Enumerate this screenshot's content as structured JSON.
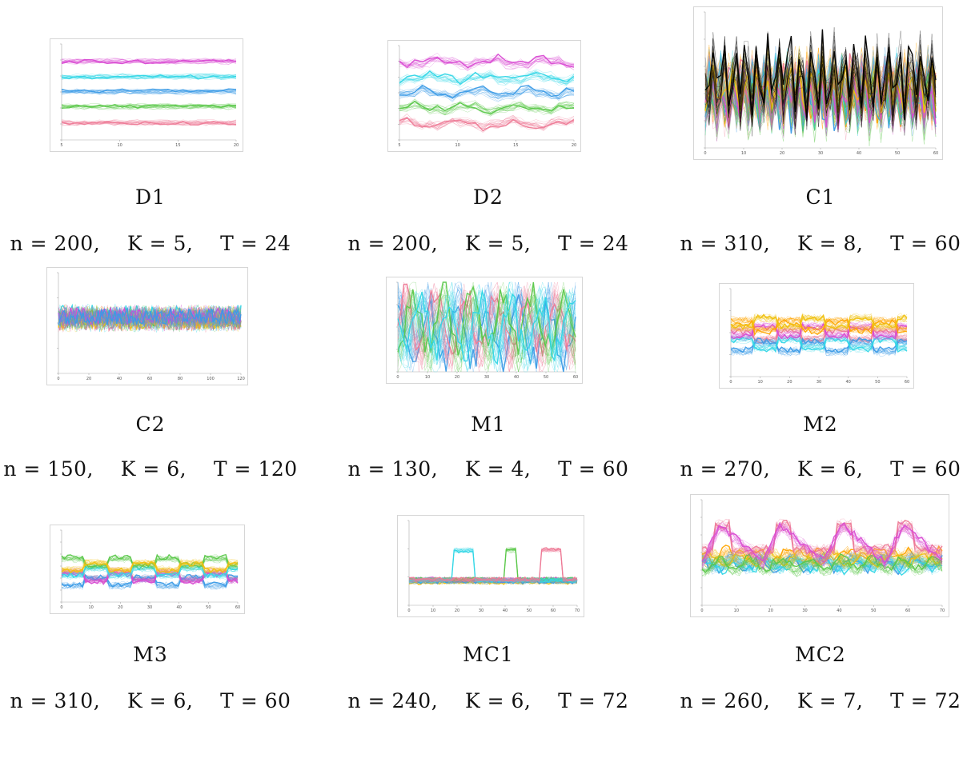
{
  "figure": {
    "panels": [
      {
        "id": "D1",
        "title": "D1",
        "params": {
          "n_label": "n = 200,",
          "k_label": "K = 5,",
          "t_label": "T = 24"
        },
        "chart_data": {
          "type": "line",
          "series_count": 5,
          "T": 24,
          "n": 200,
          "colors": [
            "#d94bd3",
            "#33d6e6",
            "#3b9be6",
            "#5ac84a",
            "#ee7b96"
          ],
          "levels": [
            0.18,
            0.34,
            0.5,
            0.65,
            0.82
          ],
          "noise": 0.03,
          "pattern": "flat",
          "xticks": [
            "5",
            "10",
            "15",
            "20"
          ],
          "yticks": [
            "",
            "",
            "",
            "",
            "",
            "",
            ""
          ]
        }
      },
      {
        "id": "D2",
        "title": "D2",
        "params": {
          "n_label": "n = 200,",
          "k_label": "K = 5,",
          "t_label": "T = 24"
        },
        "chart_data": {
          "type": "line",
          "series_count": 5,
          "T": 24,
          "n": 200,
          "colors": [
            "#d94bd3",
            "#33d6e6",
            "#3b9be6",
            "#5ac84a",
            "#ee7b96"
          ],
          "levels": [
            0.18,
            0.34,
            0.5,
            0.66,
            0.82
          ],
          "noise": 0.05,
          "pattern": "wavy",
          "xticks": [
            "5",
            "10",
            "15",
            "20"
          ],
          "yticks": [
            "",
            "",
            "",
            "",
            "",
            "",
            ""
          ]
        }
      },
      {
        "id": "C1",
        "title": "C1",
        "params": {
          "n_label": "n = 310,",
          "k_label": "K = 8,",
          "t_label": "T = 60"
        },
        "chart_data": {
          "type": "line",
          "series_count": 8,
          "T": 60,
          "n": 310,
          "colors": [
            "#000000",
            "#f0c010",
            "#d94bd3",
            "#5ac84a",
            "#33d6e6",
            "#3b9be6",
            "#ee7b96",
            "#ffa500"
          ],
          "levels": [
            0.5,
            0.55,
            0.62,
            0.65,
            0.6,
            0.58,
            0.6,
            0.55
          ],
          "noise": 0.18,
          "pattern": "spiky",
          "xticks": [
            "0",
            "10",
            "20",
            "30",
            "40",
            "50",
            "60"
          ],
          "yticks": [
            "",
            "",
            "",
            "",
            "",
            ""
          ]
        }
      },
      {
        "id": "C2",
        "title": "C2",
        "params": {
          "n_label": "n = 150,",
          "k_label": "K = 6,",
          "t_label": "T = 120"
        },
        "chart_data": {
          "type": "line",
          "series_count": 6,
          "T": 120,
          "n": 150,
          "colors": [
            "#3b9be6",
            "#d94bd3",
            "#f0c010",
            "#5ac84a",
            "#33d6e6",
            "#ee7b96"
          ],
          "levels": [
            0.45,
            0.45,
            0.45,
            0.45,
            0.45,
            0.45
          ],
          "noise": 0.12,
          "pattern": "noise",
          "xticks": [
            "0",
            "20",
            "40",
            "60",
            "80",
            "100",
            "120"
          ],
          "yticks": [
            "",
            "",
            "",
            "",
            ""
          ]
        }
      },
      {
        "id": "M1",
        "title": "M1",
        "params": {
          "n_label": "n = 130,",
          "k_label": "K = 4,",
          "t_label": "T = 60"
        },
        "chart_data": {
          "type": "line",
          "series_count": 4,
          "T": 60,
          "n": 130,
          "colors": [
            "#33d6e6",
            "#5ac84a",
            "#ee7b96",
            "#3b9be6"
          ],
          "levels": [
            0.5,
            0.5,
            0.5,
            0.5
          ],
          "noise": 0.25,
          "pattern": "oscillate",
          "xticks": [
            "0",
            "10",
            "20",
            "30",
            "40",
            "50",
            "60"
          ],
          "yticks": [
            "",
            "",
            "",
            "",
            ""
          ]
        }
      },
      {
        "id": "M2",
        "title": "M2",
        "params": {
          "n_label": "n = 270,",
          "k_label": "K = 6,",
          "t_label": "T = 60"
        },
        "chart_data": {
          "type": "line",
          "series_count": 6,
          "T": 60,
          "n": 270,
          "colors": [
            "#f0c010",
            "#ffa500",
            "#d94bd3",
            "#33d6e6",
            "#3b9be6",
            "#ee7b96"
          ],
          "levels": [
            0.38,
            0.42,
            0.48,
            0.62,
            0.66,
            0.52
          ],
          "noise": 0.05,
          "pattern": "steps",
          "xticks": [
            "0",
            "10",
            "20",
            "30",
            "40",
            "50",
            "60"
          ],
          "yticks": [
            "",
            "",
            "",
            "",
            ""
          ]
        }
      },
      {
        "id": "M3",
        "title": "M3",
        "params": {
          "n_label": "n = 310,",
          "k_label": "K = 6,",
          "t_label": "T = 60"
        },
        "chart_data": {
          "type": "line",
          "series_count": 6,
          "T": 60,
          "n": 310,
          "colors": [
            "#f0c010",
            "#5ac84a",
            "#33d6e6",
            "#d94bd3",
            "#3b9be6",
            "#ee7b96"
          ],
          "levels": [
            0.5,
            0.45,
            0.58,
            0.65,
            0.72,
            0.62
          ],
          "noise": 0.05,
          "pattern": "steps",
          "xticks": [
            "0",
            "10",
            "20",
            "30",
            "40",
            "50",
            "60"
          ],
          "yticks": [
            "",
            "",
            "",
            "",
            "",
            "",
            ""
          ]
        }
      },
      {
        "id": "MC1",
        "title": "MC1",
        "params": {
          "n_label": "n = 240,",
          "k_label": "K = 6,",
          "t_label": "T = 72"
        },
        "chart_data": {
          "type": "line",
          "series_count": 6,
          "T": 72,
          "n": 240,
          "colors": [
            "#ee7b96",
            "#33d6e6",
            "#5ac84a",
            "#d94bd3",
            "#3b9be6",
            "#f0c010"
          ],
          "levels": [
            0.7,
            0.7,
            0.7,
            0.7,
            0.72,
            0.72
          ],
          "noise": 0.03,
          "pattern": "bursts",
          "xticks": [
            "0",
            "10",
            "20",
            "30",
            "40",
            "50",
            "60",
            "70"
          ],
          "yticks": [
            "",
            "",
            "",
            ""
          ]
        }
      },
      {
        "id": "MC2",
        "title": "MC2",
        "params": {
          "n_label": "n = 260,",
          "k_label": "K = 7,",
          "t_label": "T = 72"
        },
        "chart_data": {
          "type": "line",
          "series_count": 7,
          "T": 72,
          "n": 260,
          "colors": [
            "#d94bd3",
            "#5ac84a",
            "#ee7b96",
            "#f0c010",
            "#33d6e6",
            "#3b9be6",
            "#ffa500"
          ],
          "levels": [
            0.6,
            0.62,
            0.45,
            0.55,
            0.6,
            0.6,
            0.55
          ],
          "noise": 0.06,
          "pattern": "cycles",
          "xticks": [
            "0",
            "10",
            "20",
            "30",
            "40",
            "50",
            "60",
            "70"
          ],
          "yticks": [
            "",
            "",
            "",
            "",
            "",
            "",
            ""
          ]
        }
      }
    ]
  }
}
